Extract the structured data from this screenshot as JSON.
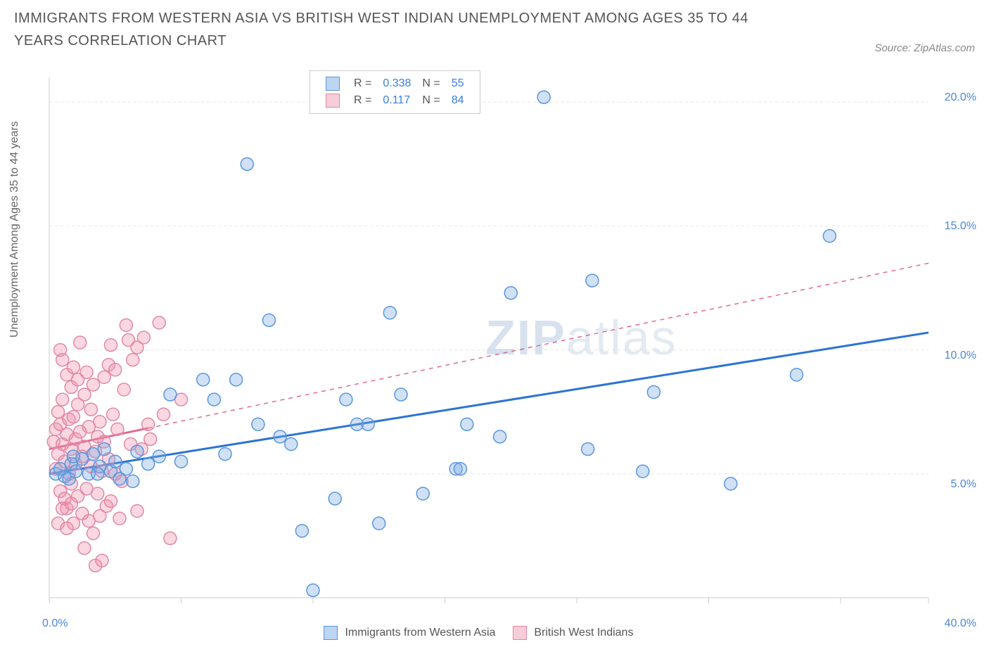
{
  "title": "IMMIGRANTS FROM WESTERN ASIA VS BRITISH WEST INDIAN UNEMPLOYMENT AMONG AGES 35 TO 44 YEARS CORRELATION CHART",
  "source": "Source: ZipAtlas.com",
  "watermark_left": "ZIP",
  "watermark_right": "atlas",
  "y_axis_label": "Unemployment Among Ages 35 to 44 years",
  "chart": {
    "type": "scatter",
    "background_color": "#ffffff",
    "grid_color": "#e6e6e6",
    "axis_color": "#cccccc",
    "xlim": [
      0,
      40
    ],
    "ylim": [
      0,
      21
    ],
    "x_ticks": [
      0,
      6,
      12,
      18,
      24,
      30,
      36,
      40
    ],
    "x_tick_labels": {
      "0": "0.0%",
      "40": "40.0%"
    },
    "y_ticks": [
      5,
      10,
      15,
      20
    ],
    "y_tick_labels": {
      "5": "5.0%",
      "10": "10.0%",
      "15": "15.0%",
      "20": "20.0%"
    },
    "marker_radius": 9,
    "marker_stroke_width": 1.5,
    "series": [
      {
        "name": "Immigrants from Western Asia",
        "key": "blue",
        "fill": "rgba(120,170,230,0.35)",
        "stroke": "#5a96dd",
        "swatch_fill": "#bcd5f2",
        "swatch_border": "#5a96dd",
        "R": "0.338",
        "N": "55",
        "trend": {
          "x1": 0,
          "y1": 5.0,
          "x2": 40,
          "y2": 10.7,
          "solid_until_x": 40,
          "color": "#2b74d4",
          "width": 3
        },
        "points": [
          [
            0.3,
            5.0
          ],
          [
            0.5,
            5.2
          ],
          [
            0.7,
            4.9
          ],
          [
            1.0,
            5.4
          ],
          [
            1.2,
            5.1
          ],
          [
            1.5,
            5.6
          ],
          [
            1.8,
            5.0
          ],
          [
            2.0,
            5.8
          ],
          [
            2.3,
            5.3
          ],
          [
            2.5,
            6.0
          ],
          [
            2.8,
            5.1
          ],
          [
            3.0,
            5.5
          ],
          [
            3.5,
            5.2
          ],
          [
            3.8,
            4.7
          ],
          [
            4.0,
            5.9
          ],
          [
            4.5,
            5.4
          ],
          [
            5.0,
            5.7
          ],
          [
            5.5,
            8.2
          ],
          [
            6.0,
            5.5
          ],
          [
            7.0,
            8.8
          ],
          [
            7.5,
            8.0
          ],
          [
            8.0,
            5.8
          ],
          [
            8.5,
            8.8
          ],
          [
            9.0,
            17.5
          ],
          [
            9.5,
            7.0
          ],
          [
            10.0,
            11.2
          ],
          [
            10.5,
            6.5
          ],
          [
            11.0,
            6.2
          ],
          [
            11.5,
            2.7
          ],
          [
            12.0,
            0.3
          ],
          [
            13.0,
            4.0
          ],
          [
            13.5,
            8.0
          ],
          [
            14.0,
            7.0
          ],
          [
            14.5,
            7.0
          ],
          [
            15.0,
            3.0
          ],
          [
            15.5,
            11.5
          ],
          [
            16.0,
            8.2
          ],
          [
            17.0,
            4.2
          ],
          [
            18.5,
            5.2
          ],
          [
            18.7,
            5.2
          ],
          [
            19.0,
            7.0
          ],
          [
            20.5,
            6.5
          ],
          [
            21.0,
            12.3
          ],
          [
            22.5,
            20.2
          ],
          [
            24.5,
            6.0
          ],
          [
            24.7,
            12.8
          ],
          [
            27.0,
            5.1
          ],
          [
            27.5,
            8.3
          ],
          [
            31.0,
            4.6
          ],
          [
            34.0,
            9.0
          ],
          [
            35.5,
            14.6
          ],
          [
            3.2,
            4.8
          ],
          [
            1.1,
            5.7
          ],
          [
            0.9,
            4.8
          ],
          [
            2.2,
            5.0
          ]
        ]
      },
      {
        "name": "British West Indians",
        "key": "pink",
        "fill": "rgba(240,140,170,0.35)",
        "stroke": "#e089a6",
        "swatch_fill": "#f6cdd9",
        "swatch_border": "#e089a6",
        "R": "0.117",
        "N": "84",
        "trend": {
          "x1": 0,
          "y1": 6.0,
          "x2": 40,
          "y2": 13.5,
          "solid_until_x": 4.5,
          "color": "#e26a91",
          "width": 3,
          "dash": "6,6"
        },
        "points": [
          [
            0.2,
            6.3
          ],
          [
            0.3,
            5.2
          ],
          [
            0.3,
            6.8
          ],
          [
            0.4,
            7.5
          ],
          [
            0.4,
            5.8
          ],
          [
            0.5,
            10.0
          ],
          [
            0.5,
            7.0
          ],
          [
            0.5,
            4.3
          ],
          [
            0.6,
            9.6
          ],
          [
            0.6,
            6.2
          ],
          [
            0.6,
            8.0
          ],
          [
            0.7,
            5.5
          ],
          [
            0.7,
            4.0
          ],
          [
            0.8,
            9.0
          ],
          [
            0.8,
            6.6
          ],
          [
            0.8,
            3.6
          ],
          [
            0.9,
            7.2
          ],
          [
            0.9,
            5.0
          ],
          [
            1.0,
            8.5
          ],
          [
            1.0,
            6.0
          ],
          [
            1.0,
            4.6
          ],
          [
            1.1,
            9.3
          ],
          [
            1.1,
            7.3
          ],
          [
            1.1,
            3.0
          ],
          [
            1.2,
            6.4
          ],
          [
            1.2,
            5.4
          ],
          [
            1.3,
            8.8
          ],
          [
            1.3,
            7.8
          ],
          [
            1.3,
            4.1
          ],
          [
            1.4,
            6.7
          ],
          [
            1.4,
            10.3
          ],
          [
            1.5,
            5.7
          ],
          [
            1.5,
            3.4
          ],
          [
            1.6,
            8.2
          ],
          [
            1.6,
            6.1
          ],
          [
            1.6,
            2.0
          ],
          [
            1.7,
            9.1
          ],
          [
            1.7,
            4.4
          ],
          [
            1.8,
            6.9
          ],
          [
            1.8,
            3.1
          ],
          [
            1.9,
            7.6
          ],
          [
            1.9,
            5.3
          ],
          [
            2.0,
            8.6
          ],
          [
            2.0,
            2.6
          ],
          [
            2.1,
            5.9
          ],
          [
            2.1,
            1.3
          ],
          [
            2.2,
            6.5
          ],
          [
            2.2,
            4.2
          ],
          [
            2.3,
            7.1
          ],
          [
            2.3,
            3.3
          ],
          [
            2.4,
            5.1
          ],
          [
            2.4,
            1.5
          ],
          [
            2.5,
            8.9
          ],
          [
            2.5,
            6.3
          ],
          [
            2.6,
            3.7
          ],
          [
            2.7,
            9.4
          ],
          [
            2.7,
            5.6
          ],
          [
            2.8,
            10.2
          ],
          [
            2.8,
            3.9
          ],
          [
            2.9,
            7.4
          ],
          [
            3.0,
            9.2
          ],
          [
            3.0,
            5.0
          ],
          [
            3.1,
            6.8
          ],
          [
            3.2,
            3.2
          ],
          [
            3.3,
            4.7
          ],
          [
            3.4,
            8.4
          ],
          [
            3.5,
            11.0
          ],
          [
            3.6,
            10.4
          ],
          [
            3.7,
            6.2
          ],
          [
            3.8,
            9.6
          ],
          [
            4.0,
            10.1
          ],
          [
            4.0,
            3.5
          ],
          [
            4.2,
            6.0
          ],
          [
            4.3,
            10.5
          ],
          [
            4.5,
            7.0
          ],
          [
            4.6,
            6.4
          ],
          [
            5.0,
            11.1
          ],
          [
            5.2,
            7.4
          ],
          [
            5.5,
            2.4
          ],
          [
            6.0,
            8.0
          ],
          [
            0.4,
            3.0
          ],
          [
            0.6,
            3.6
          ],
          [
            0.8,
            2.8
          ],
          [
            1.0,
            3.8
          ]
        ]
      }
    ]
  },
  "legend_bottom": [
    {
      "key": "blue",
      "label": "Immigrants from Western Asia"
    },
    {
      "key": "pink",
      "label": "British West Indians"
    }
  ]
}
